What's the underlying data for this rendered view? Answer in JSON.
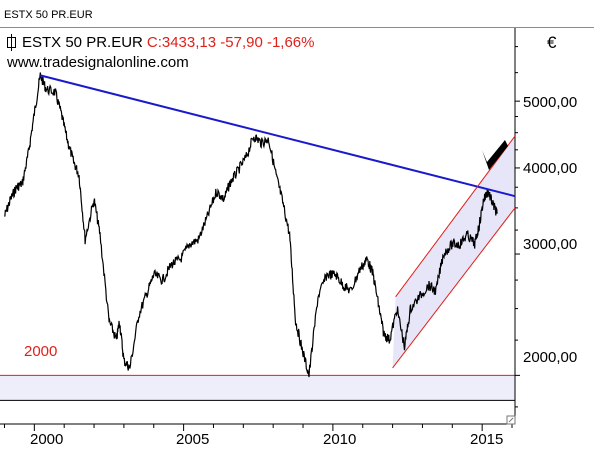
{
  "window_title": "ESTX 50 PR.EUR",
  "legend": {
    "symbol_name": "ESTX 50 PR.EUR",
    "close_text": "C:3433,13 -57,90 -1,66%"
  },
  "watermark": "www.tradesignalonline.com",
  "currency": "€",
  "colors": {
    "price": "#000000",
    "resistance": "#1a1acc",
    "channel": "#e0201a",
    "channel_fill": "#e6e6f8",
    "support_band_fill": "#eeeefa",
    "support_line": "#e0201a",
    "annotation_arrow": "#000000",
    "annotation_label": "#e0201a"
  },
  "chart_data": {
    "type": "line",
    "yscale": "log",
    "ylim": [
      1700,
      6300
    ],
    "xlim": [
      1998.85,
      2016.1
    ],
    "yticks": [
      {
        "value": 2000,
        "label": "2000,00"
      },
      {
        "value": 3000,
        "label": "3000,00"
      },
      {
        "value": 4000,
        "label": "4000,00"
      },
      {
        "value": 5000,
        "label": "5000,00"
      }
    ],
    "xticks": [
      {
        "value": 2000,
        "label": "2000"
      },
      {
        "value": 2005,
        "label": "2005"
      },
      {
        "value": 2010,
        "label": "2010"
      },
      {
        "value": 2015,
        "label": "2015"
      }
    ],
    "series": [
      {
        "x": [
          1999.0,
          1999.2,
          1999.4,
          1999.6,
          1999.8,
          2000.0,
          2000.2,
          2000.4,
          2000.7,
          2000.9,
          2001.1,
          2001.3,
          2001.5,
          2001.7,
          2002.0,
          2002.2,
          2002.5,
          2002.75,
          2002.85,
          2003.0,
          2003.2,
          2003.5,
          2003.8,
          2004.0,
          2004.3,
          2004.6,
          2004.9,
          2005.2,
          2005.5,
          2005.8,
          2006.1,
          2006.35,
          2006.55,
          2006.8,
          2007.1,
          2007.35,
          2007.6,
          2007.85,
          2008.1,
          2008.3,
          2008.55,
          2008.75,
          2008.95,
          2009.2,
          2009.5,
          2009.8,
          2010.1,
          2010.35,
          2010.6,
          2010.9,
          2011.15,
          2011.35,
          2011.55,
          2011.7,
          2011.9,
          2012.15,
          2012.4,
          2012.6,
          2012.9,
          2013.2,
          2013.45,
          2013.7,
          2014.0,
          2014.25,
          2014.5,
          2014.75,
          2014.9,
          2015.05,
          2015.2,
          2015.35,
          2015.5
        ],
        "y": [
          3400,
          3600,
          3750,
          3800,
          4200,
          4800,
          5450,
          5200,
          5150,
          4800,
          4400,
          4100,
          3900,
          3150,
          3600,
          3200,
          2400,
          2250,
          2400,
          2100,
          2050,
          2450,
          2650,
          2800,
          2750,
          2900,
          2950,
          3100,
          3150,
          3400,
          3700,
          3600,
          3800,
          3950,
          4150,
          4450,
          4350,
          4400,
          3900,
          3600,
          3200,
          2400,
          2200,
          2000,
          2600,
          2800,
          2800,
          2700,
          2650,
          2850,
          2950,
          2800,
          2500,
          2300,
          2250,
          2500,
          2200,
          2500,
          2600,
          2700,
          2650,
          3000,
          3100,
          3100,
          3200,
          3100,
          3300,
          3600,
          3700,
          3550,
          3433
        ]
      }
    ],
    "annotations": {
      "resistance_line": {
        "x": [
          2000.2,
          2016.1
        ],
        "y": [
          5450,
          3640
        ]
      },
      "channel_upper": {
        "x": [
          2012.1,
          2016.1
        ],
        "y": [
          2600,
          4450
        ]
      },
      "channel_lower": {
        "x": [
          2012.0,
          2016.1
        ],
        "y": [
          2050,
          3500
        ]
      },
      "support_band": {
        "y": [
          1840,
          2000
        ],
        "label": "2000"
      }
    }
  }
}
